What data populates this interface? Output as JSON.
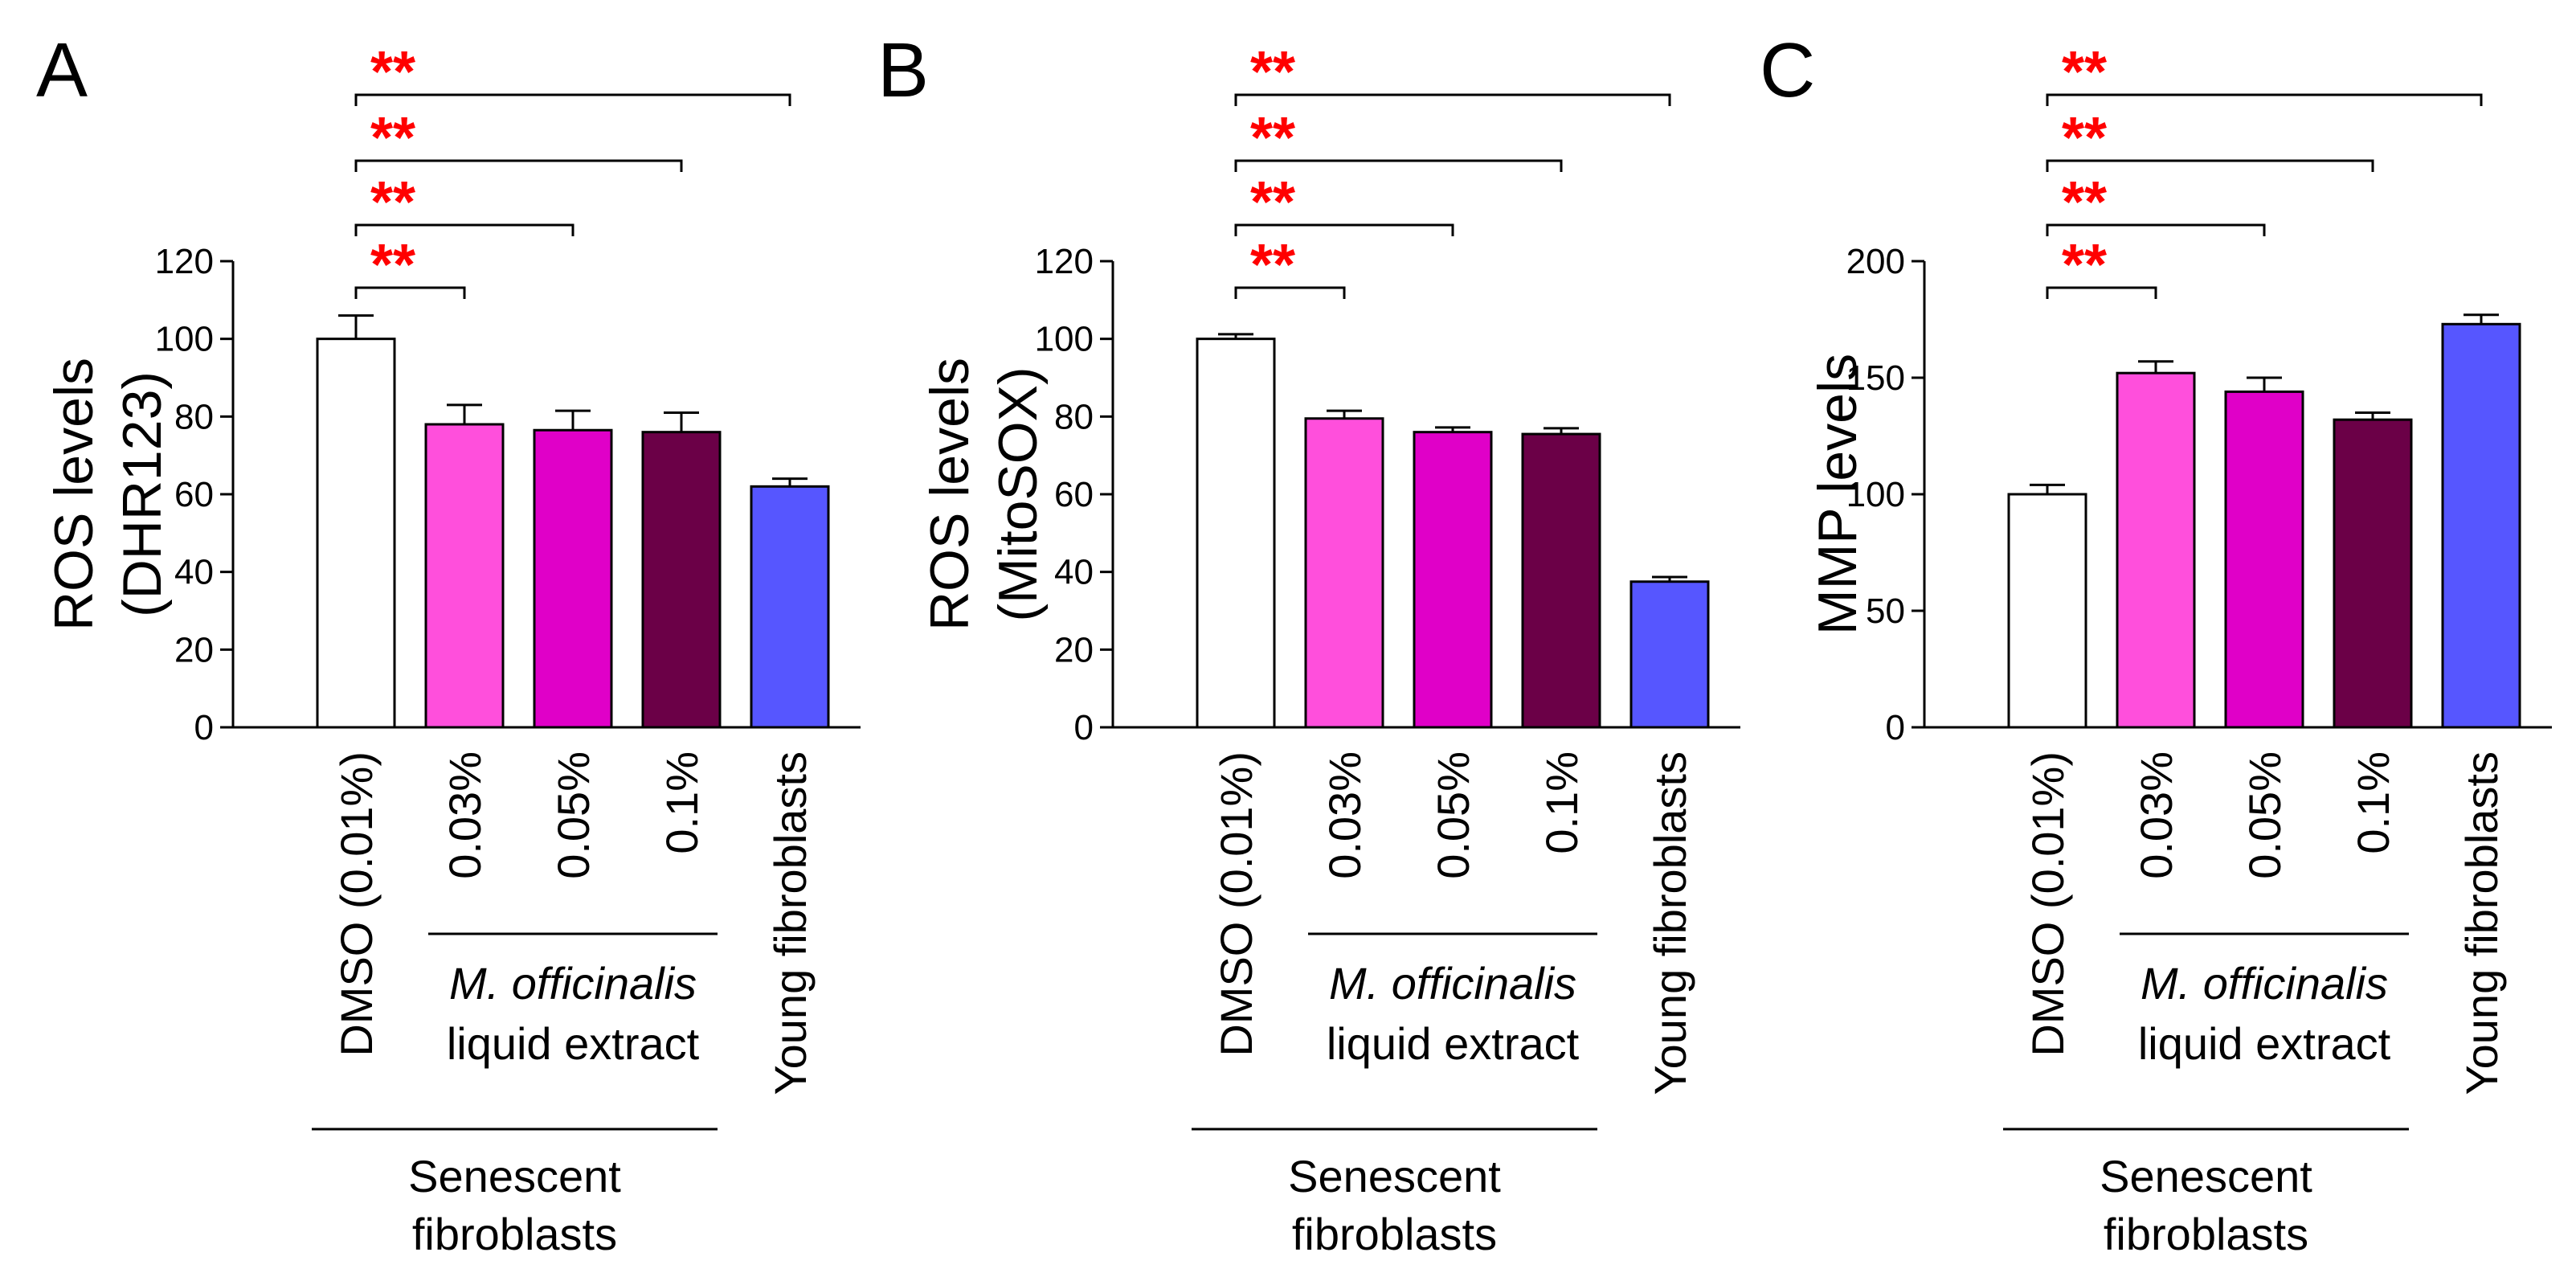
{
  "chart_data": [
    {
      "type": "bar",
      "panel": "A",
      "ylabel_line1": "ROS levels",
      "ylabel_line2": "(DHR123)",
      "ylim": [
        0,
        120
      ],
      "yticks": [
        "0",
        "20",
        "40",
        "60",
        "80",
        "100",
        "120"
      ],
      "ytick_values": [
        0,
        20,
        40,
        60,
        80,
        100,
        120
      ],
      "categories": [
        "DMSO (0.01%)",
        "0.03%",
        "0.05%",
        "0.1%",
        "Young fibroblasts"
      ],
      "values": [
        100,
        78,
        76.5,
        76,
        62
      ],
      "errors": [
        6,
        5,
        5,
        5,
        2
      ],
      "colors": [
        "#ffffff",
        "#ff4fdc",
        "#e000c8",
        "#6b0047",
        "#5656ff"
      ],
      "significance": [
        {
          "from": 0,
          "to": 1,
          "label": "**"
        },
        {
          "from": 0,
          "to": 2,
          "label": "**"
        },
        {
          "from": 0,
          "to": 3,
          "label": "**"
        },
        {
          "from": 0,
          "to": 4,
          "label": "**"
        }
      ]
    },
    {
      "type": "bar",
      "panel": "B",
      "ylabel_line1": "ROS levels",
      "ylabel_line2": "(MitoSOX)",
      "ylim": [
        0,
        120
      ],
      "yticks": [
        "0",
        "20",
        "40",
        "60",
        "80",
        "100",
        "120"
      ],
      "ytick_values": [
        0,
        20,
        40,
        60,
        80,
        100,
        120
      ],
      "categories": [
        "DMSO (0.01%)",
        "0.03%",
        "0.05%",
        "0.1%",
        "Young fibroblasts"
      ],
      "values": [
        100,
        79.5,
        76,
        75.5,
        37.5
      ],
      "errors": [
        1.2,
        2,
        1.2,
        1.5,
        1.2
      ],
      "colors": [
        "#ffffff",
        "#ff4fdc",
        "#e000c8",
        "#6b0047",
        "#5656ff"
      ],
      "significance": [
        {
          "from": 0,
          "to": 1,
          "label": "**"
        },
        {
          "from": 0,
          "to": 2,
          "label": "**"
        },
        {
          "from": 0,
          "to": 3,
          "label": "**"
        },
        {
          "from": 0,
          "to": 4,
          "label": "**"
        }
      ]
    },
    {
      "type": "bar",
      "panel": "C",
      "ylabel_line1": "MMP levels",
      "ylabel_line2": "",
      "ylim": [
        0,
        200
      ],
      "yticks": [
        "0",
        "50",
        "100",
        "150",
        "200"
      ],
      "ytick_values": [
        0,
        50,
        100,
        150,
        200
      ],
      "categories": [
        "DMSO (0.01%)",
        "0.03%",
        "0.05%",
        "0.1%",
        "Young fibroblasts"
      ],
      "values": [
        100,
        152,
        144,
        132,
        173
      ],
      "errors": [
        4,
        5,
        6,
        3,
        4
      ],
      "colors": [
        "#ffffff",
        "#ff4fdc",
        "#e000c8",
        "#6b0047",
        "#5656ff"
      ],
      "significance": [
        {
          "from": 0,
          "to": 1,
          "label": "**"
        },
        {
          "from": 0,
          "to": 2,
          "label": "**"
        },
        {
          "from": 0,
          "to": 3,
          "label": "**"
        },
        {
          "from": 0,
          "to": 4,
          "label": "**"
        }
      ]
    }
  ],
  "group_labels": {
    "extract_italic": "M. officinalis",
    "extract_rest": "liquid extract",
    "senescent_line1": "Senescent",
    "senescent_line2": "fibroblasts"
  },
  "colors": {
    "significance": "#ff0000",
    "axis": "#000000"
  }
}
